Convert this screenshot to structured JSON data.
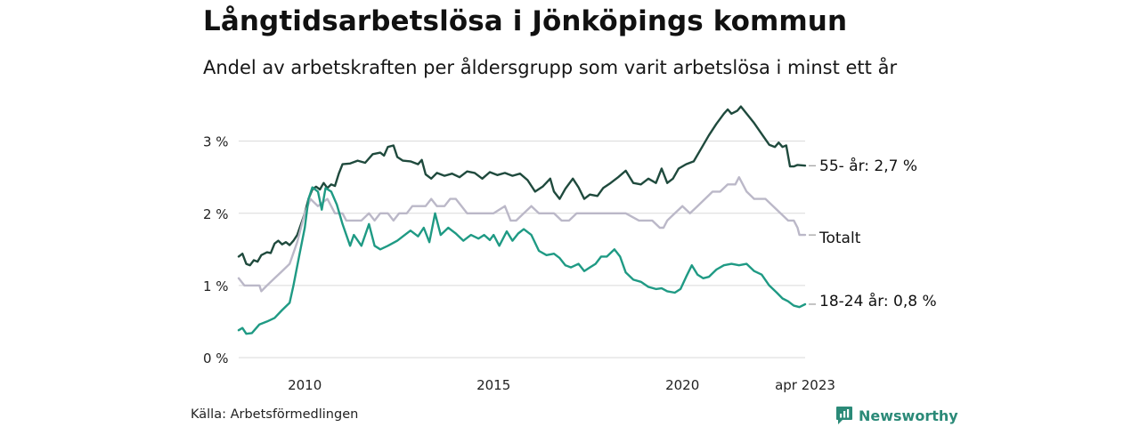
{
  "header": {
    "title": "Långtidsarbetslösa i Jönköpings kommun",
    "subtitle": "Andel av arbetskraften per åldersgrupp som varit arbetslösa i minst ett år"
  },
  "footer": {
    "source": "Källa: Arbetsförmedlingen",
    "brand": "Newsworthy",
    "brand_icon": "newsworthy-logo-icon",
    "brand_color": "#2b8a78"
  },
  "chart_data": {
    "type": "line",
    "x_unit": "year",
    "xlim": [
      2008.25,
      2023.25
    ],
    "ylim": [
      0,
      3.6
    ],
    "y_ticks": [
      0,
      1,
      2,
      3
    ],
    "y_tick_labels": [
      "0 %",
      "1 %",
      "2 %",
      "3 %"
    ],
    "x_ticks": [
      2010,
      2015,
      2020,
      2023.25
    ],
    "x_tick_labels": [
      "2010",
      "2015",
      "2020",
      "apr 2023"
    ],
    "grid": "horizontal",
    "legend": "direct labels at line ends",
    "series": [
      {
        "name": "55- år",
        "end_label": "55- år: 2,7 %",
        "color": "#1f4a3d",
        "points": [
          [
            2008.25,
            1.4
          ],
          [
            2008.35,
            1.44
          ],
          [
            2008.45,
            1.3
          ],
          [
            2008.55,
            1.28
          ],
          [
            2008.65,
            1.35
          ],
          [
            2008.75,
            1.33
          ],
          [
            2008.85,
            1.42
          ],
          [
            2009.0,
            1.46
          ],
          [
            2009.1,
            1.45
          ],
          [
            2009.2,
            1.58
          ],
          [
            2009.3,
            1.62
          ],
          [
            2009.4,
            1.57
          ],
          [
            2009.5,
            1.6
          ],
          [
            2009.6,
            1.56
          ],
          [
            2009.7,
            1.62
          ],
          [
            2009.8,
            1.7
          ],
          [
            2009.9,
            1.85
          ],
          [
            2010.0,
            2.0
          ],
          [
            2010.1,
            2.2
          ],
          [
            2010.2,
            2.33
          ],
          [
            2010.3,
            2.37
          ],
          [
            2010.4,
            2.33
          ],
          [
            2010.5,
            2.42
          ],
          [
            2010.6,
            2.35
          ],
          [
            2010.7,
            2.4
          ],
          [
            2010.8,
            2.38
          ],
          [
            2010.9,
            2.55
          ],
          [
            2011.0,
            2.68
          ],
          [
            2011.2,
            2.69
          ],
          [
            2011.4,
            2.73
          ],
          [
            2011.6,
            2.7
          ],
          [
            2011.8,
            2.82
          ],
          [
            2012.0,
            2.84
          ],
          [
            2012.1,
            2.8
          ],
          [
            2012.2,
            2.92
          ],
          [
            2012.35,
            2.94
          ],
          [
            2012.45,
            2.78
          ],
          [
            2012.6,
            2.73
          ],
          [
            2012.8,
            2.72
          ],
          [
            2013.0,
            2.68
          ],
          [
            2013.1,
            2.74
          ],
          [
            2013.2,
            2.54
          ],
          [
            2013.35,
            2.48
          ],
          [
            2013.5,
            2.56
          ],
          [
            2013.7,
            2.52
          ],
          [
            2013.9,
            2.55
          ],
          [
            2014.1,
            2.5
          ],
          [
            2014.3,
            2.58
          ],
          [
            2014.5,
            2.56
          ],
          [
            2014.7,
            2.48
          ],
          [
            2014.9,
            2.57
          ],
          [
            2015.1,
            2.53
          ],
          [
            2015.3,
            2.56
          ],
          [
            2015.5,
            2.52
          ],
          [
            2015.7,
            2.55
          ],
          [
            2015.9,
            2.46
          ],
          [
            2016.1,
            2.3
          ],
          [
            2016.3,
            2.37
          ],
          [
            2016.5,
            2.48
          ],
          [
            2016.6,
            2.3
          ],
          [
            2016.75,
            2.2
          ],
          [
            2016.9,
            2.34
          ],
          [
            2017.1,
            2.48
          ],
          [
            2017.25,
            2.36
          ],
          [
            2017.4,
            2.2
          ],
          [
            2017.55,
            2.26
          ],
          [
            2017.75,
            2.24
          ],
          [
            2017.9,
            2.35
          ],
          [
            2018.1,
            2.42
          ],
          [
            2018.3,
            2.5
          ],
          [
            2018.5,
            2.59
          ],
          [
            2018.7,
            2.42
          ],
          [
            2018.9,
            2.4
          ],
          [
            2019.1,
            2.48
          ],
          [
            2019.3,
            2.42
          ],
          [
            2019.45,
            2.62
          ],
          [
            2019.6,
            2.42
          ],
          [
            2019.75,
            2.48
          ],
          [
            2019.9,
            2.62
          ],
          [
            2020.1,
            2.68
          ],
          [
            2020.3,
            2.72
          ],
          [
            2020.5,
            2.9
          ],
          [
            2020.7,
            3.08
          ],
          [
            2020.9,
            3.24
          ],
          [
            2021.1,
            3.38
          ],
          [
            2021.2,
            3.44
          ],
          [
            2021.3,
            3.38
          ],
          [
            2021.45,
            3.42
          ],
          [
            2021.55,
            3.48
          ],
          [
            2021.7,
            3.38
          ],
          [
            2021.9,
            3.25
          ],
          [
            2022.1,
            3.1
          ],
          [
            2022.3,
            2.95
          ],
          [
            2022.45,
            2.92
          ],
          [
            2022.55,
            2.98
          ],
          [
            2022.65,
            2.92
          ],
          [
            2022.75,
            2.94
          ],
          [
            2022.85,
            2.65
          ],
          [
            2022.95,
            2.65
          ],
          [
            2023.05,
            2.67
          ],
          [
            2023.25,
            2.66
          ]
        ]
      },
      {
        "name": "Totalt",
        "end_label": "Totalt",
        "color": "#bbb8c8",
        "points": [
          [
            2008.25,
            1.1
          ],
          [
            2008.4,
            1.0
          ],
          [
            2008.6,
            1.0
          ],
          [
            2008.8,
            1.0
          ],
          [
            2008.85,
            0.92
          ],
          [
            2009.0,
            1.0
          ],
          [
            2009.2,
            1.1
          ],
          [
            2009.4,
            1.2
          ],
          [
            2009.6,
            1.3
          ],
          [
            2009.8,
            1.6
          ],
          [
            2010.0,
            2.0
          ],
          [
            2010.15,
            2.2
          ],
          [
            2010.35,
            2.1
          ],
          [
            2010.6,
            2.2
          ],
          [
            2010.8,
            2.0
          ],
          [
            2011.0,
            2.0
          ],
          [
            2011.1,
            1.9
          ],
          [
            2011.5,
            1.9
          ],
          [
            2011.7,
            2.0
          ],
          [
            2011.85,
            1.9
          ],
          [
            2012.0,
            2.0
          ],
          [
            2012.2,
            2.0
          ],
          [
            2012.35,
            1.9
          ],
          [
            2012.5,
            2.0
          ],
          [
            2012.7,
            2.0
          ],
          [
            2012.85,
            2.1
          ],
          [
            2013.0,
            2.1
          ],
          [
            2013.2,
            2.1
          ],
          [
            2013.35,
            2.2
          ],
          [
            2013.5,
            2.1
          ],
          [
            2013.7,
            2.1
          ],
          [
            2013.85,
            2.2
          ],
          [
            2014.0,
            2.2
          ],
          [
            2014.15,
            2.1
          ],
          [
            2014.3,
            2.0
          ],
          [
            2015.0,
            2.0
          ],
          [
            2015.3,
            2.1
          ],
          [
            2015.45,
            1.9
          ],
          [
            2015.6,
            1.9
          ],
          [
            2015.8,
            2.0
          ],
          [
            2016.0,
            2.1
          ],
          [
            2016.2,
            2.0
          ],
          [
            2016.6,
            2.0
          ],
          [
            2016.8,
            1.9
          ],
          [
            2017.0,
            1.9
          ],
          [
            2017.2,
            2.0
          ],
          [
            2018.0,
            2.0
          ],
          [
            2018.5,
            2.0
          ],
          [
            2018.85,
            1.9
          ],
          [
            2019.2,
            1.9
          ],
          [
            2019.4,
            1.8
          ],
          [
            2019.5,
            1.8
          ],
          [
            2019.6,
            1.9
          ],
          [
            2019.8,
            2.0
          ],
          [
            2020.0,
            2.1
          ],
          [
            2020.2,
            2.0
          ],
          [
            2020.4,
            2.1
          ],
          [
            2020.6,
            2.2
          ],
          [
            2020.8,
            2.3
          ],
          [
            2021.0,
            2.3
          ],
          [
            2021.2,
            2.4
          ],
          [
            2021.4,
            2.4
          ],
          [
            2021.5,
            2.5
          ],
          [
            2021.7,
            2.3
          ],
          [
            2021.9,
            2.2
          ],
          [
            2022.2,
            2.2
          ],
          [
            2022.4,
            2.1
          ],
          [
            2022.6,
            2.0
          ],
          [
            2022.8,
            1.9
          ],
          [
            2022.95,
            1.9
          ],
          [
            2023.05,
            1.8
          ],
          [
            2023.1,
            1.7
          ],
          [
            2023.25,
            1.7
          ]
        ]
      },
      {
        "name": "18-24 år",
        "end_label": "18-24 år: 0,8 %",
        "color": "#1f9a84",
        "points": [
          [
            2008.25,
            0.38
          ],
          [
            2008.35,
            0.41
          ],
          [
            2008.45,
            0.33
          ],
          [
            2008.6,
            0.34
          ],
          [
            2008.8,
            0.46
          ],
          [
            2009.0,
            0.5
          ],
          [
            2009.2,
            0.55
          ],
          [
            2009.4,
            0.66
          ],
          [
            2009.6,
            0.76
          ],
          [
            2009.7,
            1.0
          ],
          [
            2009.85,
            1.4
          ],
          [
            2010.0,
            1.8
          ],
          [
            2010.1,
            2.2
          ],
          [
            2010.2,
            2.36
          ],
          [
            2010.35,
            2.3
          ],
          [
            2010.45,
            2.05
          ],
          [
            2010.55,
            2.35
          ],
          [
            2010.7,
            2.3
          ],
          [
            2010.85,
            2.12
          ],
          [
            2011.0,
            1.85
          ],
          [
            2011.2,
            1.55
          ],
          [
            2011.3,
            1.7
          ],
          [
            2011.5,
            1.55
          ],
          [
            2011.7,
            1.85
          ],
          [
            2011.85,
            1.55
          ],
          [
            2012.0,
            1.5
          ],
          [
            2012.2,
            1.55
          ],
          [
            2012.45,
            1.62
          ],
          [
            2012.6,
            1.68
          ],
          [
            2012.8,
            1.76
          ],
          [
            2013.0,
            1.68
          ],
          [
            2013.15,
            1.8
          ],
          [
            2013.3,
            1.6
          ],
          [
            2013.45,
            2.0
          ],
          [
            2013.6,
            1.7
          ],
          [
            2013.8,
            1.8
          ],
          [
            2014.0,
            1.72
          ],
          [
            2014.2,
            1.62
          ],
          [
            2014.4,
            1.7
          ],
          [
            2014.6,
            1.65
          ],
          [
            2014.75,
            1.7
          ],
          [
            2014.9,
            1.63
          ],
          [
            2015.0,
            1.7
          ],
          [
            2015.15,
            1.55
          ],
          [
            2015.35,
            1.75
          ],
          [
            2015.5,
            1.62
          ],
          [
            2015.65,
            1.72
          ],
          [
            2015.8,
            1.78
          ],
          [
            2016.0,
            1.7
          ],
          [
            2016.2,
            1.48
          ],
          [
            2016.4,
            1.42
          ],
          [
            2016.6,
            1.44
          ],
          [
            2016.75,
            1.38
          ],
          [
            2016.9,
            1.28
          ],
          [
            2017.05,
            1.25
          ],
          [
            2017.25,
            1.3
          ],
          [
            2017.4,
            1.2
          ],
          [
            2017.55,
            1.25
          ],
          [
            2017.7,
            1.3
          ],
          [
            2017.85,
            1.4
          ],
          [
            2018.0,
            1.4
          ],
          [
            2018.2,
            1.5
          ],
          [
            2018.35,
            1.4
          ],
          [
            2018.5,
            1.18
          ],
          [
            2018.7,
            1.08
          ],
          [
            2018.9,
            1.05
          ],
          [
            2019.1,
            0.98
          ],
          [
            2019.3,
            0.95
          ],
          [
            2019.45,
            0.96
          ],
          [
            2019.6,
            0.92
          ],
          [
            2019.8,
            0.9
          ],
          [
            2019.95,
            0.95
          ],
          [
            2020.1,
            1.12
          ],
          [
            2020.25,
            1.28
          ],
          [
            2020.4,
            1.15
          ],
          [
            2020.55,
            1.1
          ],
          [
            2020.7,
            1.12
          ],
          [
            2020.9,
            1.22
          ],
          [
            2021.1,
            1.28
          ],
          [
            2021.3,
            1.3
          ],
          [
            2021.5,
            1.28
          ],
          [
            2021.7,
            1.3
          ],
          [
            2021.9,
            1.2
          ],
          [
            2022.1,
            1.15
          ],
          [
            2022.3,
            1.0
          ],
          [
            2022.5,
            0.9
          ],
          [
            2022.65,
            0.82
          ],
          [
            2022.8,
            0.78
          ],
          [
            2022.95,
            0.72
          ],
          [
            2023.1,
            0.7
          ],
          [
            2023.25,
            0.74
          ]
        ]
      }
    ]
  }
}
